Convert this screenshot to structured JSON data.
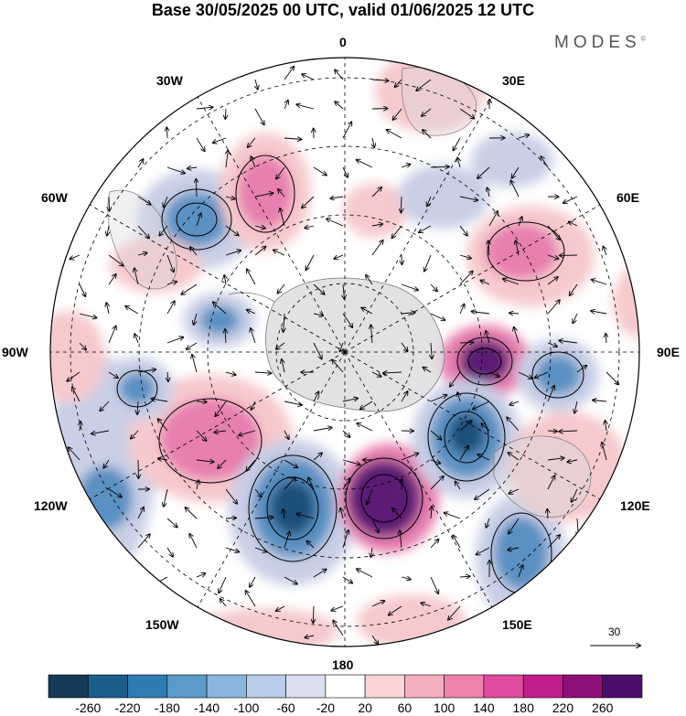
{
  "header": {
    "title": "Base 30/05/2025 00 UTC, valid 01/06/2025 12 UTC",
    "brand": "MODES",
    "brand_mark": "©"
  },
  "map": {
    "projection": "south-polar-stereographic",
    "longitude_labels": {
      "top": "0",
      "bottom": "180",
      "left": "90W",
      "right": "90E",
      "upper_left_1": "30W",
      "upper_left_2": "60W",
      "lower_left_1": "120W",
      "lower_left_2": "150W",
      "upper_right_1": "30E",
      "upper_right_2": "60E",
      "lower_right_1": "120E",
      "lower_right_2": "150E"
    },
    "anomaly_field_colors": {
      "strong_negative": "#1a4f7a",
      "negative": "#5a90c2",
      "weak_negative": "#c9cfe6",
      "weak_positive": "#f6c9cc",
      "positive": "#e77fb0",
      "strong_positive": "#5b1a75"
    },
    "reference_vector_label": "30"
  },
  "colorbar": {
    "colors": [
      "#133a57",
      "#1c5d8c",
      "#2f7cb3",
      "#5b9ac9",
      "#8bb6dd",
      "#b8cbe8",
      "#dcdff0",
      "#ffffff",
      "#fbd5d6",
      "#f5b0bf",
      "#ee82ad",
      "#df4c9d",
      "#c11e8c",
      "#8e1079",
      "#4d0d6b"
    ],
    "tick_labels": [
      "-260",
      "-220",
      "-180",
      "-140",
      "-100",
      "-60",
      "-20",
      "20",
      "60",
      "100",
      "140",
      "180",
      "220",
      "260"
    ]
  }
}
